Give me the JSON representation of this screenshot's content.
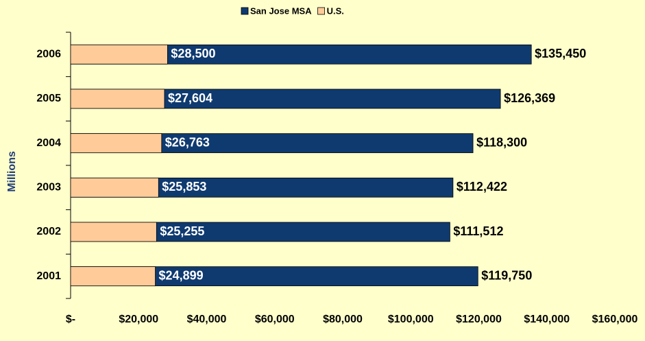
{
  "chart_data": {
    "type": "bar",
    "orientation": "horizontal",
    "overlap": true,
    "y_label": "Millions",
    "categories": [
      "2001",
      "2002",
      "2003",
      "2004",
      "2005",
      "2006"
    ],
    "series": [
      {
        "name": "San Jose MSA",
        "color": "#0f3a70",
        "values": [
          119750,
          111512,
          112422,
          118300,
          126369,
          135450
        ],
        "value_labels": [
          "$119,750",
          "$111,512",
          "$112,422",
          "$118,300",
          "$126,369",
          "$135,450"
        ]
      },
      {
        "name": "U.S.",
        "color": "#ffcc99",
        "values": [
          24899,
          25255,
          25853,
          26763,
          27604,
          28500
        ],
        "value_labels": [
          "$24,899",
          "$25,255",
          "$25,853",
          "$26,763",
          "$27,604",
          "$28,500"
        ]
      }
    ],
    "xlim": [
      0,
      160000
    ],
    "xticks": [
      {
        "value": 0,
        "label": "$-"
      },
      {
        "value": 20000,
        "label": "$20,000"
      },
      {
        "value": 40000,
        "label": "$40,000"
      },
      {
        "value": 60000,
        "label": "$60,000"
      },
      {
        "value": 80000,
        "label": "$80,000"
      },
      {
        "value": 100000,
        "label": "$100,000"
      },
      {
        "value": 120000,
        "label": "$120,000"
      },
      {
        "value": 140000,
        "label": "$140,000"
      },
      {
        "value": 160000,
        "label": "$160,000"
      }
    ],
    "legend": "top"
  }
}
